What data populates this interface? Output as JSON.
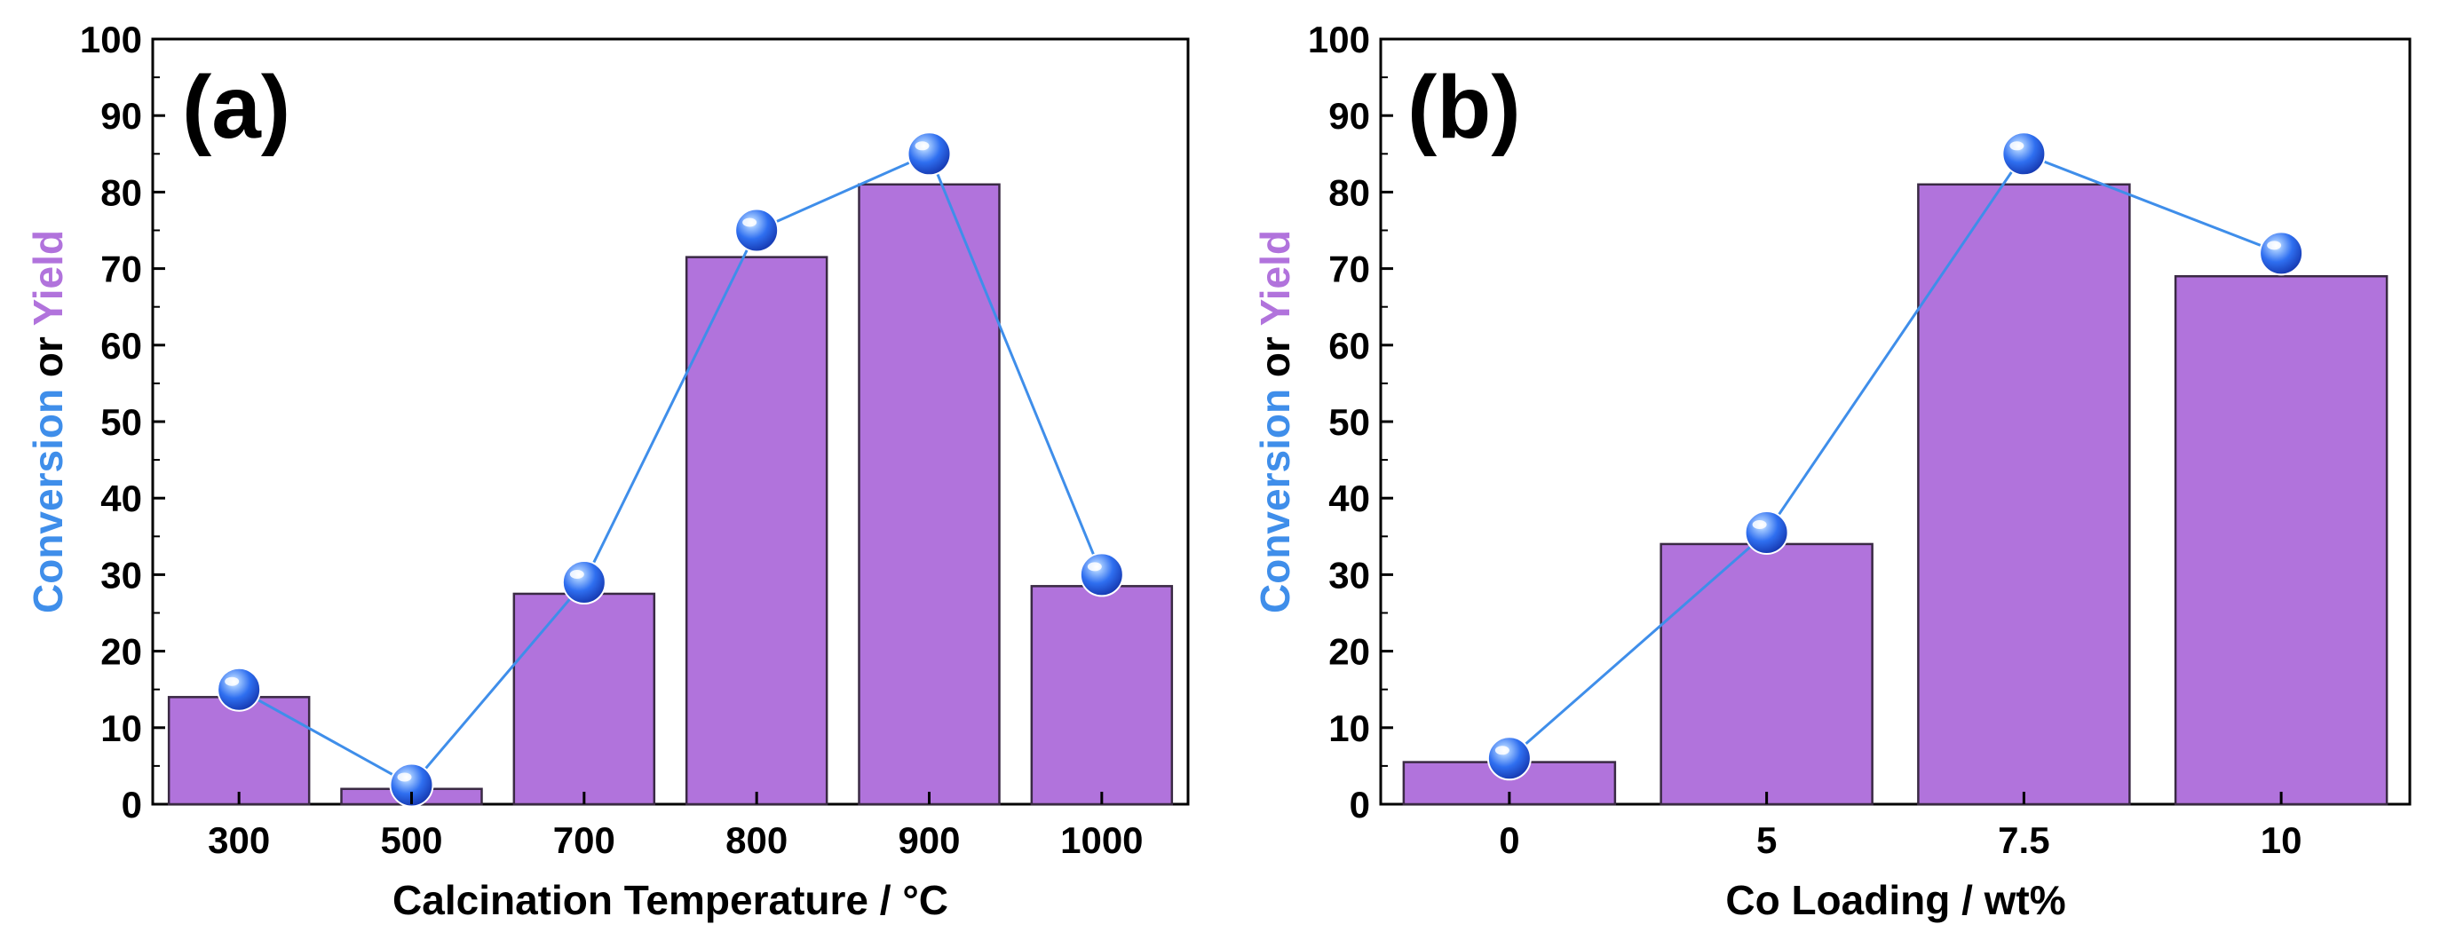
{
  "colors": {
    "bar_fill": "#b173dc",
    "bar_stroke": "#3a2a44",
    "line": "#3f8eea",
    "conversion_text": "#3f8eea",
    "yield_text": "#b173dc",
    "marker_dark": "#1746c8",
    "marker_light": "#9cc4ff"
  },
  "chart_data": [
    {
      "type": "bar+line",
      "panel_label": "(a)",
      "categories": [
        "300",
        "500",
        "700",
        "800",
        "900",
        "1000"
      ],
      "series": [
        {
          "name": "Yield",
          "type": "bar",
          "values": [
            14,
            2,
            27.5,
            71.5,
            81,
            28.5
          ]
        },
        {
          "name": "Conversion",
          "type": "line",
          "values": [
            15,
            2.5,
            29,
            75,
            85,
            30
          ]
        }
      ],
      "xlabel": "Calcination Temperature / °C",
      "ylabel": {
        "part1": "Conversion",
        "part2": " or ",
        "part3": "Yield"
      },
      "ylim": [
        0,
        100
      ],
      "yticks": [
        "0",
        "10",
        "20",
        "30",
        "40",
        "50",
        "60",
        "70",
        "80",
        "90",
        "100"
      ]
    },
    {
      "type": "bar+line",
      "panel_label": "(b)",
      "categories": [
        "0",
        "5",
        "7.5",
        "10"
      ],
      "series": [
        {
          "name": "Yield",
          "type": "bar",
          "values": [
            5.5,
            34,
            81,
            69
          ]
        },
        {
          "name": "Conversion",
          "type": "line",
          "values": [
            6,
            35.5,
            85,
            72
          ]
        }
      ],
      "xlabel": "Co Loading / wt%",
      "ylabel": {
        "part1": "Conversion",
        "part2": " or ",
        "part3": "Yield"
      },
      "ylim": [
        0,
        100
      ],
      "yticks": [
        "0",
        "10",
        "20",
        "30",
        "40",
        "50",
        "60",
        "70",
        "80",
        "90",
        "100"
      ]
    }
  ]
}
